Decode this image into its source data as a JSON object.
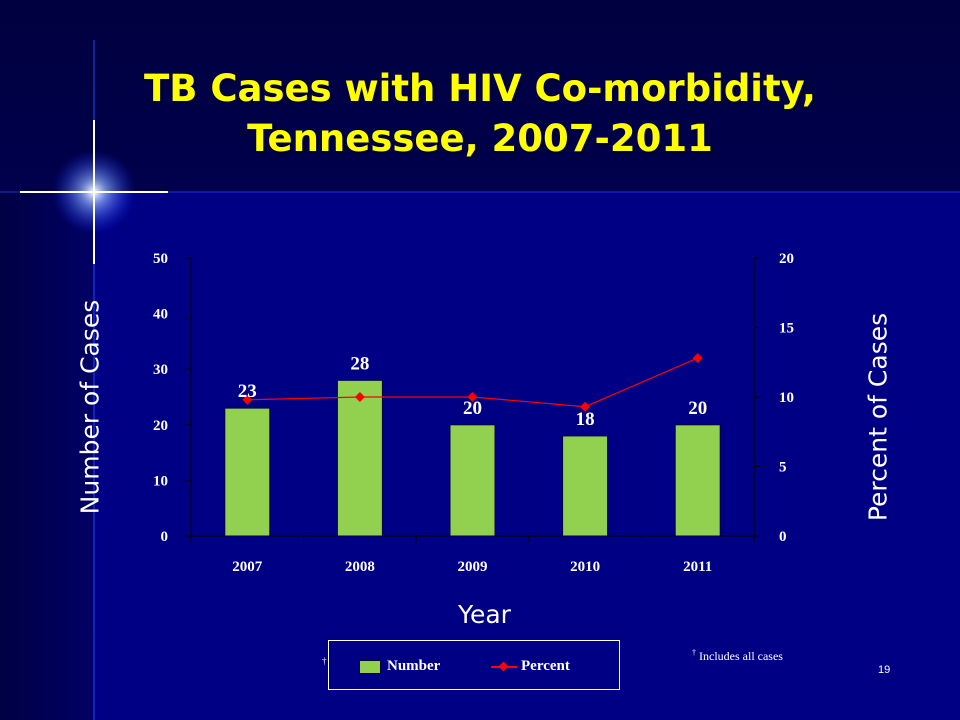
{
  "slide": {
    "title_line1": "TB Cases with HIV Co-morbidity,",
    "title_line2": "Tennessee, 2007-2011",
    "footnote_mark": "†",
    "footnote_text": "Includes all cases",
    "slide_number": "19"
  },
  "chart_data": {
    "type": "bar+line",
    "categories": [
      "2007",
      "2008",
      "2009",
      "2010",
      "2011"
    ],
    "series": [
      {
        "name": "Number",
        "type": "bar",
        "axis": "left",
        "color": "#92d050",
        "values": [
          23,
          28,
          20,
          18,
          20
        ]
      },
      {
        "name": "Percent",
        "type": "line",
        "axis": "right",
        "color": "#ff0000",
        "marker": "diamond",
        "values": [
          9.8,
          10.0,
          10.0,
          9.3,
          12.8
        ]
      }
    ],
    "data_labels": [
      "23",
      "28",
      "20",
      "18",
      "20"
    ],
    "xlabel": "Year",
    "ylabel": "Number of Cases",
    "y2label": "Percent of Cases",
    "ylim": [
      0,
      50
    ],
    "yticks": [
      0,
      10,
      20,
      30,
      40,
      50
    ],
    "y2lim": [
      0,
      20
    ],
    "y2ticks": [
      0,
      5,
      10,
      15,
      20
    ],
    "grid": false,
    "legend_position": "bottom",
    "text_color": "#ffffff",
    "background_color": "#00007a"
  }
}
